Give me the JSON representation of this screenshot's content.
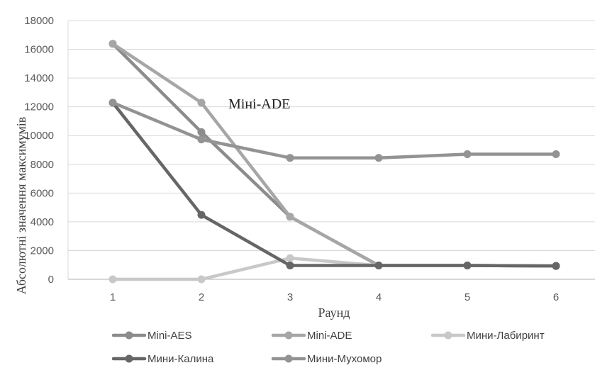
{
  "chart_data": {
    "type": "line",
    "title": "",
    "xlabel": "Раунд",
    "ylabel": "Абсолютні значення максимумів",
    "categories": [
      "1",
      "2",
      "3",
      "4",
      "5",
      "6"
    ],
    "ylim": [
      0,
      18000
    ],
    "yticks": [
      "0",
      "2000",
      "4000",
      "6000",
      "8000",
      "10000",
      "12000",
      "14000",
      "16000",
      "18000"
    ],
    "grid": "horizontal",
    "legend_position": "bottom",
    "annotation": "Міні-ADE",
    "series": [
      {
        "name": "Mini-AES",
        "color": "#8c8c8c",
        "values": [
          16384,
          10240,
          4352,
          960,
          960,
          928
        ]
      },
      {
        "name": "Mini-ADE",
        "color": "#a6a6a6",
        "values": [
          16384,
          12288,
          4352,
          960,
          960,
          928
        ]
      },
      {
        "name": "Мини-Лабиринт",
        "color": "#c8c8c8",
        "values": [
          0,
          0,
          1472,
          960,
          960,
          928
        ]
      },
      {
        "name": "Мини-Калина",
        "color": "#666666",
        "values": [
          12288,
          4480,
          960,
          960,
          960,
          928
        ]
      },
      {
        "name": "Мини-Мухомор",
        "color": "#939393",
        "values": [
          12288,
          9728,
          8448,
          8448,
          8704,
          8704
        ]
      }
    ]
  }
}
